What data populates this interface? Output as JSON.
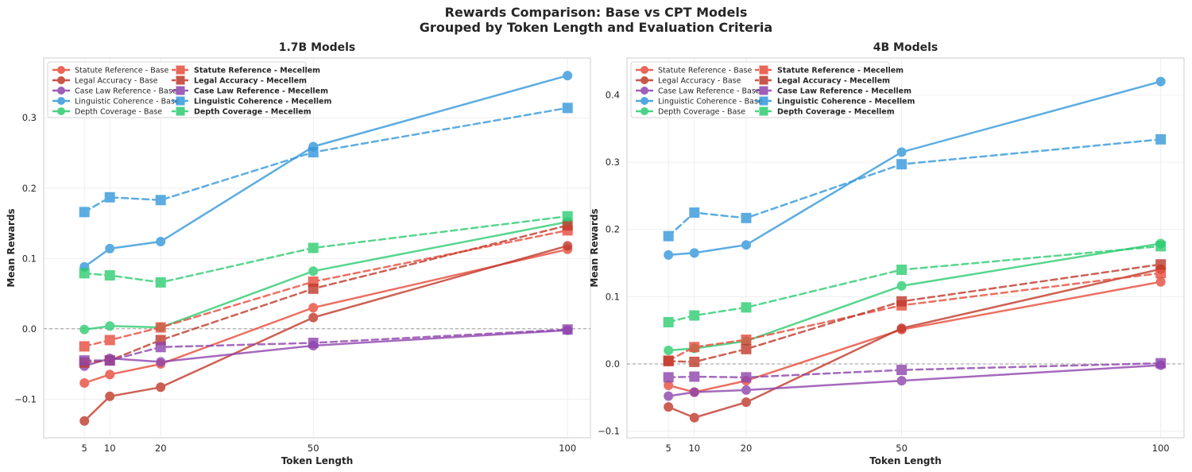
{
  "title": "Rewards Comparison: Base vs CPT Models",
  "subtitle": "Grouped by Token Length and Evaluation Criteria",
  "colors": {
    "statute": "#e74c3c",
    "legal": "#c0392b",
    "caselaw": "#8e44ad",
    "linguistic": "#3498db",
    "depth": "#2ecc71",
    "zero_line": "#999999",
    "grid": "#ebebeb",
    "frame": "#cccccc"
  },
  "chart_data": [
    {
      "type": "line",
      "title": "1.7B Models",
      "xlabel": "Token Length",
      "ylabel": "Mean Rewards",
      "x": [
        5,
        10,
        20,
        50,
        100
      ],
      "xticks": [
        5,
        10,
        20,
        50,
        100
      ],
      "xlim": [
        -3,
        104.5
      ],
      "ylim": [
        -0.155,
        0.385
      ],
      "yticks": [
        -0.1,
        0.0,
        0.1,
        0.2,
        0.3
      ],
      "ytick_labels": [
        "−0.1",
        "0.0",
        "0.1",
        "0.2",
        "0.3"
      ],
      "xtick_labels": [
        "5",
        "10",
        "20",
        "50",
        "100"
      ],
      "grid": true,
      "legend": "top-left",
      "series": [
        {
          "name": "Statute Reference - Base",
          "color_key": "statute",
          "style": "base",
          "values": [
            -0.077,
            -0.065,
            -0.05,
            0.03,
            0.113
          ]
        },
        {
          "name": "Legal Accuracy - Base",
          "color_key": "legal",
          "style": "base",
          "values": [
            -0.131,
            -0.096,
            -0.083,
            0.016,
            0.118
          ]
        },
        {
          "name": "Case Law Reference - Base",
          "color_key": "caselaw",
          "style": "base",
          "values": [
            -0.053,
            -0.042,
            -0.047,
            -0.024,
            -0.002
          ]
        },
        {
          "name": "Linguistic Coherence - Base",
          "color_key": "linguistic",
          "style": "base",
          "values": [
            0.088,
            0.114,
            0.124,
            0.259,
            0.36
          ]
        },
        {
          "name": "Depth Coverage - Base",
          "color_key": "depth",
          "style": "base",
          "values": [
            -0.001,
            0.004,
            0.002,
            0.082,
            0.152
          ]
        },
        {
          "name": "Statute Reference - Mecellem",
          "color_key": "statute",
          "style": "cpt",
          "values": [
            -0.025,
            -0.016,
            0.002,
            0.067,
            0.14
          ]
        },
        {
          "name": "Legal Accuracy - Mecellem",
          "color_key": "legal",
          "style": "cpt",
          "values": [
            -0.048,
            -0.045,
            -0.016,
            0.057,
            0.147
          ]
        },
        {
          "name": "Case Law Reference - Mecellem",
          "color_key": "caselaw",
          "style": "cpt",
          "values": [
            -0.045,
            -0.045,
            -0.026,
            -0.02,
            -0.001
          ]
        },
        {
          "name": "Linguistic Coherence - Mecellem",
          "color_key": "linguistic",
          "style": "cpt",
          "values": [
            0.166,
            0.187,
            0.183,
            0.251,
            0.314
          ]
        },
        {
          "name": "Depth Coverage - Mecellem",
          "color_key": "depth",
          "style": "cpt",
          "values": [
            0.079,
            0.076,
            0.066,
            0.115,
            0.16
          ]
        }
      ]
    },
    {
      "type": "line",
      "title": "4B Models",
      "xlabel": "Token Length",
      "ylabel": "Mean Rewards",
      "x": [
        5,
        10,
        20,
        50,
        100
      ],
      "xticks": [
        5,
        10,
        20,
        50,
        100
      ],
      "xlim": [
        -3,
        104.5
      ],
      "ylim": [
        -0.11,
        0.455
      ],
      "yticks": [
        -0.1,
        0.0,
        0.1,
        0.2,
        0.3,
        0.4
      ],
      "ytick_labels": [
        "−0.1",
        "0.0",
        "0.1",
        "0.2",
        "0.3",
        "0.4"
      ],
      "xtick_labels": [
        "5",
        "10",
        "20",
        "50",
        "100"
      ],
      "grid": true,
      "legend": "top-left",
      "series": [
        {
          "name": "Statute Reference - Base",
          "color_key": "statute",
          "style": "base",
          "values": [
            -0.032,
            -0.042,
            -0.025,
            0.051,
            0.122
          ]
        },
        {
          "name": "Legal Accuracy - Base",
          "color_key": "legal",
          "style": "base",
          "values": [
            -0.064,
            -0.08,
            -0.057,
            0.053,
            0.141
          ]
        },
        {
          "name": "Case Law Reference - Base",
          "color_key": "caselaw",
          "style": "base",
          "values": [
            -0.048,
            -0.042,
            -0.039,
            -0.025,
            -0.002
          ]
        },
        {
          "name": "Linguistic Coherence - Base",
          "color_key": "linguistic",
          "style": "base",
          "values": [
            0.162,
            0.165,
            0.177,
            0.315,
            0.42
          ]
        },
        {
          "name": "Depth Coverage - Base",
          "color_key": "depth",
          "style": "base",
          "values": [
            0.02,
            0.023,
            0.034,
            0.116,
            0.179
          ]
        },
        {
          "name": "Statute Reference - Mecellem",
          "color_key": "statute",
          "style": "cpt",
          "values": [
            0.005,
            0.025,
            0.036,
            0.087,
            0.135
          ]
        },
        {
          "name": "Legal Accuracy - Mecellem",
          "color_key": "legal",
          "style": "cpt",
          "values": [
            0.004,
            0.003,
            0.022,
            0.093,
            0.148
          ]
        },
        {
          "name": "Case Law Reference - Mecellem",
          "color_key": "caselaw",
          "style": "cpt",
          "values": [
            -0.02,
            -0.019,
            -0.02,
            -0.009,
            0.001
          ]
        },
        {
          "name": "Linguistic Coherence - Mecellem",
          "color_key": "linguistic",
          "style": "cpt",
          "values": [
            0.19,
            0.225,
            0.217,
            0.297,
            0.334
          ]
        },
        {
          "name": "Depth Coverage - Mecellem",
          "color_key": "depth",
          "style": "cpt",
          "values": [
            0.062,
            0.072,
            0.084,
            0.14,
            0.175
          ]
        }
      ]
    }
  ]
}
